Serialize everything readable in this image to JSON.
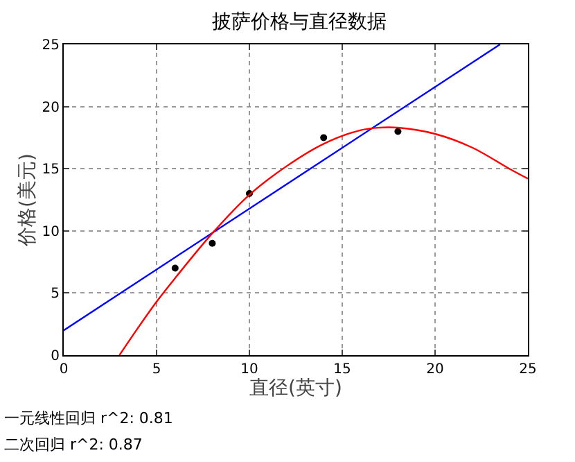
{
  "chart_data": {
    "type": "scatter",
    "title": "披萨价格与直径数据",
    "xlabel": "直径(英寸)",
    "ylabel": "价格(美元)",
    "xlim": [
      0,
      25
    ],
    "ylim": [
      0,
      25
    ],
    "xticks": [
      0,
      5,
      10,
      15,
      20,
      25
    ],
    "yticks": [
      0,
      5,
      10,
      15,
      20,
      25
    ],
    "grid": true,
    "series": [
      {
        "color": "#000000",
        "marker": "circle",
        "x": [
          6,
          8,
          10,
          14,
          18
        ],
        "values": [
          7,
          9,
          13,
          17.5,
          18
        ]
      },
      {
        "type": "line",
        "color": "#0000ff",
        "marker": "none",
        "x": [
          0,
          23.5
        ],
        "values": [
          2,
          25
        ]
      },
      {
        "type": "line",
        "color": "#ff0000",
        "marker": "none",
        "x": [
          3,
          4,
          5,
          6,
          8,
          10,
          12,
          14,
          16,
          17,
          18,
          20,
          22,
          24,
          25
        ],
        "values": [
          0,
          2.2,
          4.3,
          6.2,
          9.8,
          12.9,
          15.2,
          17,
          18.1,
          18.3,
          18.3,
          17.8,
          16.7,
          15,
          14.2
        ]
      }
    ],
    "annotations": [
      "一元线性回归 r^2: 0.81",
      "二次回归 r^2: 0.87"
    ]
  }
}
